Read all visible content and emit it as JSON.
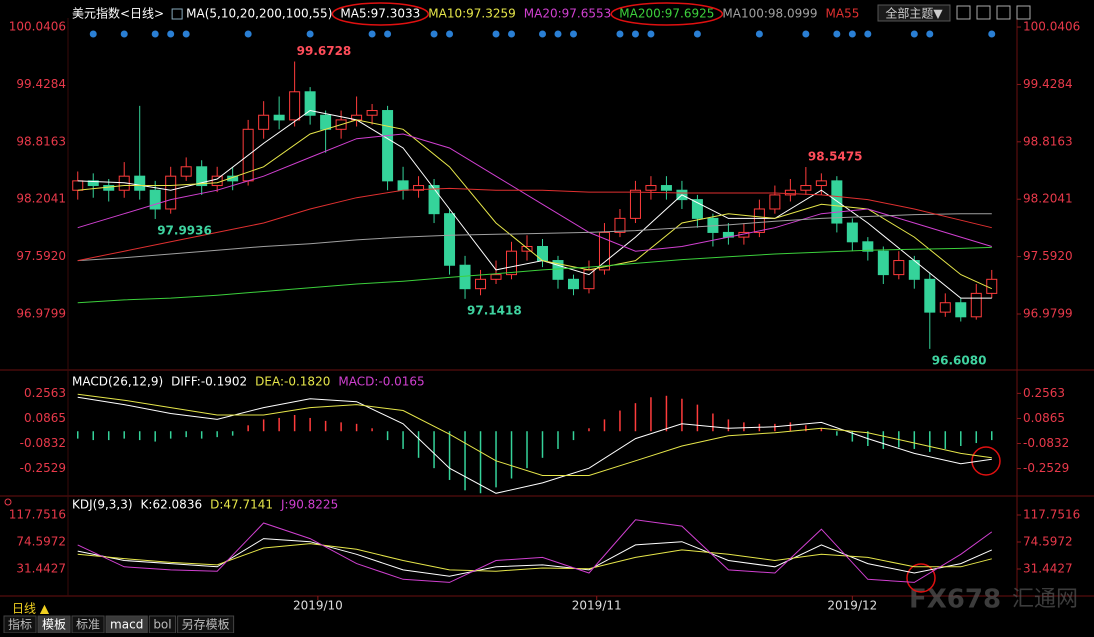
{
  "chart_data": [
    {
      "type": "candlestick",
      "title": "美元指数<日线>",
      "subtitle": "MA(5,10,20,200,100,55)",
      "xlim": [
        -0.5,
        60.5
      ],
      "ylim": [
        96.404,
        100.137
      ],
      "yticks": [
        100.0406,
        99.4284,
        98.8163,
        98.2041,
        {
          "value": 97.592,
          "label": "97.5920"
        },
        96.9799
      ],
      "grid": false,
      "up_color": "#ff3c3c",
      "down_color": "#35d39a",
      "marker_color": "#2a7fd4",
      "open": [
        98.3,
        98.4,
        98.35,
        98.3,
        98.45,
        98.3,
        98.1,
        98.45,
        98.55,
        98.35,
        98.45,
        98.4,
        98.95,
        99.1,
        99.05,
        99.35,
        99.1,
        98.95,
        99.05,
        99.1,
        99.15,
        98.4,
        98.3,
        98.35,
        98.05,
        97.5,
        97.25,
        97.35,
        97.4,
        97.65,
        97.7,
        97.55,
        97.35,
        97.25,
        97.45,
        97.85,
        98.0,
        98.3,
        98.35,
        98.3,
        98.2,
        98.0,
        97.85,
        97.8,
        97.85,
        98.1,
        98.25,
        98.3,
        98.35,
        98.4,
        97.95,
        97.75,
        97.65,
        97.4,
        97.55,
        97.35,
        97.0,
        97.1,
        96.95,
        97.2
      ],
      "high": [
        98.5,
        98.48,
        98.42,
        98.6,
        99.2,
        98.4,
        98.55,
        98.65,
        98.62,
        98.55,
        98.55,
        99.05,
        99.25,
        99.3,
        99.6728,
        99.4,
        99.15,
        99.15,
        99.3,
        99.22,
        99.2,
        98.55,
        98.45,
        98.42,
        98.1,
        97.6,
        97.45,
        97.55,
        97.75,
        97.82,
        97.78,
        97.6,
        97.4,
        97.55,
        97.95,
        98.1,
        98.4,
        98.45,
        98.45,
        98.4,
        98.25,
        98.05,
        97.95,
        97.95,
        98.2,
        98.35,
        98.42,
        98.5475,
        98.48,
        98.45,
        98.0,
        97.8,
        97.7,
        97.65,
        97.6,
        97.42,
        97.2,
        97.15,
        97.3,
        97.45
      ],
      "low": [
        98.2,
        98.22,
        98.18,
        98.22,
        98.2,
        97.9936,
        98.05,
        98.4,
        98.25,
        98.28,
        98.3,
        98.35,
        98.85,
        98.95,
        98.98,
        99.0,
        98.7,
        98.85,
        98.98,
        99.0,
        98.3,
        98.2,
        98.22,
        97.95,
        97.4,
        97.1418,
        97.18,
        97.3,
        97.35,
        97.55,
        97.48,
        97.25,
        97.18,
        97.2,
        97.4,
        97.8,
        97.95,
        98.2,
        98.2,
        98.1,
        97.9,
        97.7,
        97.72,
        97.72,
        97.8,
        98.05,
        98.18,
        98.25,
        98.25,
        97.85,
        97.65,
        97.55,
        97.3,
        97.35,
        97.25,
        96.608,
        96.95,
        96.9,
        96.92,
        97.15
      ],
      "close": [
        98.4,
        98.35,
        98.3,
        98.45,
        98.3,
        98.1,
        98.45,
        98.55,
        98.35,
        98.45,
        98.4,
        98.95,
        99.1,
        99.05,
        99.35,
        99.1,
        98.95,
        99.05,
        99.1,
        99.15,
        98.4,
        98.3,
        98.35,
        98.05,
        97.5,
        97.25,
        97.35,
        97.4,
        97.65,
        97.7,
        97.55,
        97.35,
        97.25,
        97.45,
        97.85,
        98.0,
        98.3,
        98.35,
        98.3,
        98.2,
        98.0,
        97.85,
        97.8,
        97.85,
        98.1,
        98.25,
        98.3,
        98.35,
        98.4,
        97.95,
        97.75,
        97.65,
        97.4,
        97.55,
        97.35,
        97.0,
        97.1,
        96.95,
        97.2,
        97.35
      ],
      "series_x": [
        0,
        3,
        6,
        9,
        12,
        15,
        18,
        21,
        24,
        27,
        30,
        33,
        36,
        39,
        42,
        45,
        48,
        51,
        54,
        57,
        59
      ],
      "series": [
        {
          "name": "MA5:97.3033",
          "color": "#ffffff",
          "values": [
            98.4,
            98.38,
            98.3,
            98.42,
            98.8,
            99.15,
            99.05,
            98.75,
            98.1,
            97.45,
            97.55,
            97.4,
            97.8,
            98.25,
            98.0,
            98.0,
            98.3,
            97.95,
            97.55,
            97.15,
            97.15
          ]
        },
        {
          "name": "MA10:97.3259",
          "color": "#e6e64a",
          "values": [
            98.3,
            98.35,
            98.35,
            98.38,
            98.55,
            98.9,
            99.05,
            98.95,
            98.55,
            97.95,
            97.55,
            97.45,
            97.55,
            97.95,
            98.05,
            98.0,
            98.15,
            98.1,
            97.8,
            97.4,
            97.25
          ]
        },
        {
          "name": "MA20:97.6553",
          "color": "#d040d0",
          "values": [
            97.9,
            98.05,
            98.2,
            98.3,
            98.45,
            98.65,
            98.85,
            98.9,
            98.75,
            98.45,
            98.15,
            97.85,
            97.65,
            97.7,
            97.8,
            97.9,
            98.05,
            98.1,
            97.95,
            97.8,
            97.7
          ]
        },
        {
          "name": "MA200:97.6925",
          "color": "#3cd03c",
          "values": [
            97.1,
            97.13,
            97.15,
            97.18,
            97.22,
            97.26,
            97.3,
            97.33,
            97.37,
            97.41,
            97.45,
            97.48,
            97.52,
            97.56,
            97.59,
            97.62,
            97.64,
            97.66,
            97.67,
            97.68,
            97.69
          ]
        },
        {
          "name": "MA100:98.0999",
          "color": "#a0a0a0",
          "values": [
            97.55,
            97.58,
            97.62,
            97.66,
            97.7,
            97.73,
            97.77,
            97.8,
            97.82,
            97.83,
            97.84,
            97.85,
            97.87,
            97.9,
            97.93,
            97.97,
            98.0,
            98.02,
            98.04,
            98.05,
            98.05
          ]
        },
        {
          "name": "MA55",
          "color": "#e03030",
          "values": [
            97.55,
            97.65,
            97.75,
            97.85,
            97.95,
            98.1,
            98.22,
            98.3,
            98.32,
            98.3,
            98.3,
            98.28,
            98.28,
            98.27,
            98.27,
            98.27,
            98.25,
            98.2,
            98.1,
            97.98,
            97.9
          ]
        }
      ],
      "markers": [
        1,
        3,
        5,
        6,
        7,
        11,
        15,
        19,
        20,
        23,
        24,
        27,
        28,
        30,
        31,
        32,
        35,
        36,
        37,
        40,
        44,
        47,
        49,
        50,
        51,
        54,
        55,
        59
      ],
      "annotations": [
        {
          "label": "99.6728",
          "index": 14,
          "at": "high"
        },
        {
          "label": "97.9936",
          "index": 5,
          "at": "low"
        },
        {
          "label": "97.1418",
          "index": 25,
          "at": "low"
        },
        {
          "label": "98.5475",
          "index": 47,
          "at": "high"
        },
        {
          "label": "96.6080",
          "index": 55,
          "at": "low"
        }
      ],
      "annotation_colors": {
        "high": "#ff4d5a",
        "low": "#3fd3a0"
      }
    },
    {
      "type": "macd",
      "title": "MACD(26,12,9)",
      "xlim": [
        -0.5,
        60.5
      ],
      "ylim": [
        -0.425,
        0.401
      ],
      "yticks": [
        0.2563,
        0.0865,
        -0.0832,
        -0.2529
      ],
      "grid": false,
      "series_x": [
        0,
        3,
        6,
        9,
        12,
        15,
        18,
        21,
        24,
        27,
        30,
        33,
        36,
        39,
        42,
        45,
        48,
        51,
        54,
        57,
        59
      ],
      "series": [
        {
          "name": "DIFF:-0.1902",
          "color": "#ffffff",
          "values": [
            0.23,
            0.18,
            0.12,
            0.08,
            0.16,
            0.22,
            0.2,
            0.05,
            -0.25,
            -0.42,
            -0.35,
            -0.25,
            -0.05,
            0.05,
            0.02,
            0.03,
            0.06,
            -0.05,
            -0.15,
            -0.22,
            -0.19
          ]
        },
        {
          "name": "DEA:-0.1820",
          "color": "#e6e64a",
          "values": [
            0.25,
            0.21,
            0.16,
            0.11,
            0.11,
            0.16,
            0.18,
            0.14,
            -0.02,
            -0.2,
            -0.3,
            -0.3,
            -0.2,
            -0.1,
            -0.03,
            -0.01,
            0.02,
            -0.01,
            -0.08,
            -0.15,
            -0.18
          ]
        }
      ],
      "histogram": {
        "name": "MACD:-0.0165",
        "color": "#d040d0",
        "up_color": "#ff3c3c",
        "down_color": "#35d39a",
        "values": [
          -0.05,
          -0.06,
          -0.06,
          -0.05,
          -0.06,
          -0.07,
          -0.05,
          -0.04,
          -0.05,
          -0.04,
          -0.03,
          0.04,
          0.08,
          0.09,
          0.11,
          0.09,
          0.07,
          0.06,
          0.05,
          0.02,
          -0.06,
          -0.12,
          -0.18,
          -0.25,
          -0.33,
          -0.4,
          -0.42,
          -0.38,
          -0.32,
          -0.25,
          -0.18,
          -0.12,
          -0.06,
          0.02,
          0.08,
          0.14,
          0.19,
          0.23,
          0.24,
          0.22,
          0.18,
          0.12,
          0.08,
          0.06,
          0.05,
          0.05,
          0.06,
          0.04,
          0.02,
          -0.03,
          -0.07,
          -0.1,
          -0.12,
          -0.11,
          -0.12,
          -0.14,
          -0.12,
          -0.1,
          -0.08,
          -0.06
        ]
      }
    },
    {
      "type": "line",
      "title": "KDJ(9,3,3)",
      "xlim": [
        -0.5,
        60.5
      ],
      "ylim": [
        -10.1,
        144.9
      ],
      "yticks": [
        117.7516,
        74.5972,
        31.4427
      ],
      "grid": false,
      "xticks": [
        {
          "value": 15.5,
          "label": "2019/10"
        },
        {
          "value": 33.5,
          "label": "2019/11"
        },
        {
          "value": 50,
          "label": "2019/12"
        }
      ],
      "series_x": [
        0,
        3,
        6,
        9,
        12,
        15,
        18,
        21,
        24,
        27,
        30,
        33,
        36,
        39,
        42,
        45,
        48,
        51,
        54,
        57,
        59
      ],
      "series": [
        {
          "name": "K:62.0836",
          "color": "#ffffff",
          "values": [
            60,
            45,
            40,
            35,
            80,
            75,
            55,
            30,
            20,
            35,
            38,
            30,
            70,
            75,
            45,
            35,
            70,
            40,
            25,
            40,
            62
          ]
        },
        {
          "name": "D:47.7141",
          "color": "#e6e64a",
          "values": [
            55,
            48,
            42,
            38,
            65,
            72,
            63,
            45,
            30,
            28,
            33,
            32,
            50,
            62,
            55,
            45,
            55,
            50,
            35,
            35,
            47.7
          ]
        },
        {
          "name": "J:90.8225",
          "color": "#d040d0",
          "values": [
            70,
            35,
            30,
            28,
            105,
            80,
            40,
            15,
            10,
            45,
            50,
            25,
            110,
            100,
            30,
            25,
            95,
            15,
            10,
            55,
            90.8
          ]
        }
      ]
    }
  ],
  "toolbar": {
    "theme": "全部主题▼"
  },
  "period": "日线 ▲",
  "tabs": [
    "指标",
    "模板",
    "标准",
    "macd",
    "bol",
    "另存模板"
  ],
  "active_tabs": [
    1,
    3
  ],
  "watermark": {
    "brand": "FX678",
    "site": "汇通网"
  }
}
